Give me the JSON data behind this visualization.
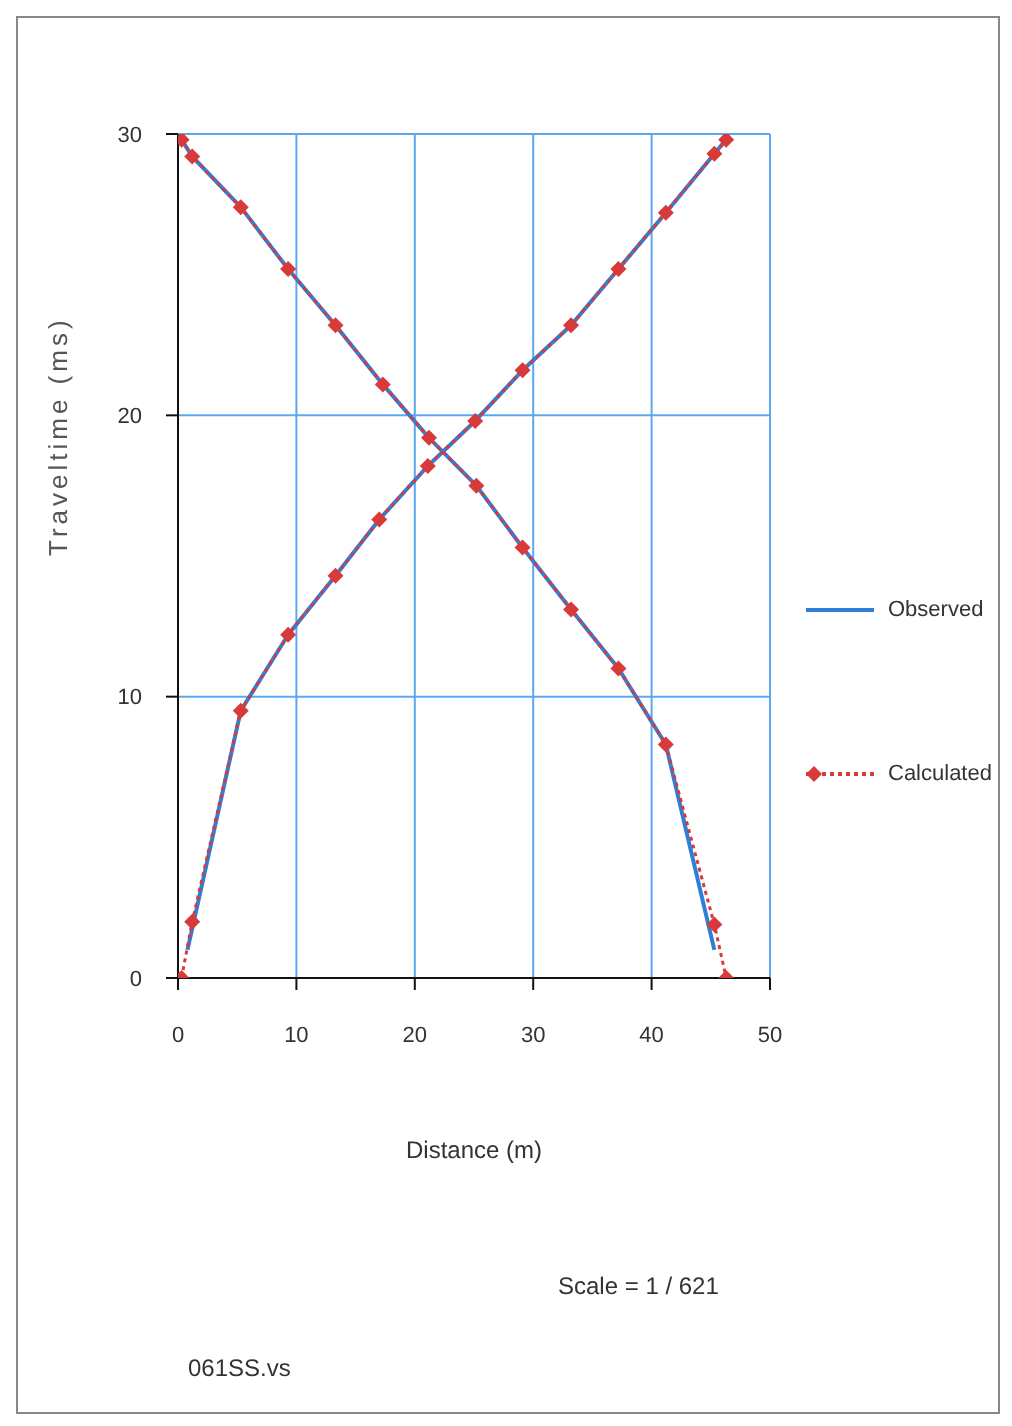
{
  "chart_data": {
    "type": "line",
    "xlabel": "Distance (m)",
    "ylabel": "Traveltime (ms)",
    "xlim": [
      0,
      50
    ],
    "xticks": [
      0,
      10,
      20,
      30,
      40,
      50
    ],
    "ylim": [
      0,
      30
    ],
    "yticks": [
      0,
      10,
      20,
      30
    ],
    "grid": true,
    "legend": "right",
    "annotations": [
      "Scale = 1 / 621",
      "061SS.vs"
    ],
    "series": [
      {
        "name": "Observed",
        "color": "#2f7fd8",
        "line_style": "solid",
        "marker": "none",
        "x": [
          0.8,
          5.3,
          9.3,
          13.3,
          17.0,
          21.1,
          25.1,
          29.1,
          33.2,
          37.2,
          41.2,
          45.3,
          46.3
        ],
        "values": [
          1.0,
          9.5,
          12.2,
          14.3,
          16.3,
          18.2,
          19.8,
          21.6,
          23.2,
          25.2,
          27.2,
          29.3,
          29.8
        ]
      },
      {
        "color": "#2f7fd8",
        "line_style": "solid",
        "marker": "none",
        "x": [
          0.3,
          1.2,
          5.3,
          9.3,
          13.3,
          17.3,
          21.2,
          25.2,
          29.1,
          33.2,
          37.2,
          41.2,
          45.3
        ],
        "values": [
          29.8,
          29.2,
          27.4,
          25.2,
          23.2,
          21.1,
          19.2,
          17.5,
          15.3,
          13.1,
          11.0,
          8.3,
          1.0
        ]
      },
      {
        "name": "Calculated",
        "color": "#d83a3a",
        "line_style": "dotted",
        "marker": "diamond",
        "x": [
          0.3,
          1.2,
          5.3,
          9.3,
          13.3,
          17.0,
          21.1,
          25.1,
          29.1,
          33.2,
          37.2,
          41.2,
          45.3,
          46.3
        ],
        "values": [
          0,
          2.0,
          9.5,
          12.2,
          14.3,
          16.3,
          18.2,
          19.8,
          21.6,
          23.2,
          25.2,
          27.2,
          29.3,
          29.8
        ]
      },
      {
        "color": "#d83a3a",
        "line_style": "dotted",
        "marker": "diamond",
        "x": [
          0.3,
          1.2,
          5.3,
          9.3,
          13.3,
          17.3,
          21.2,
          25.2,
          29.1,
          33.2,
          37.2,
          41.2,
          45.3,
          46.3
        ],
        "values": [
          29.8,
          29.2,
          27.4,
          25.2,
          23.2,
          21.1,
          19.2,
          17.5,
          15.3,
          13.1,
          11.0,
          8.3,
          1.9,
          0
        ]
      }
    ]
  }
}
